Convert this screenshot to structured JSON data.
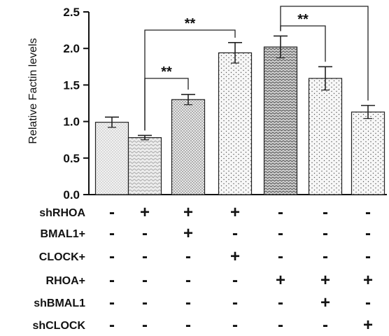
{
  "chart_data": {
    "type": "bar",
    "ylabel": "Relative Factin levels",
    "ylim": [
      0,
      2.5
    ],
    "yticks": [
      "0.0",
      "0.5",
      "1.0",
      "1.5",
      "2.0",
      "2.5"
    ],
    "yticks_values": [
      0,
      0.5,
      1.0,
      1.5,
      2.0,
      2.5
    ],
    "values": [
      0.99,
      0.78,
      1.3,
      1.94,
      2.02,
      1.59,
      1.13
    ],
    "errors": [
      0.07,
      0.03,
      0.07,
      0.14,
      0.15,
      0.16,
      0.09
    ],
    "bar_patterns": [
      "fine-dots",
      "chevrons",
      "dense-dots",
      "sparse-dots",
      "dense-chevrons",
      "sparse-dots",
      "sparse-dots"
    ],
    "grid": false,
    "significance": [
      {
        "from": 1,
        "to": 2,
        "label": "**"
      },
      {
        "from": 1,
        "to": 3,
        "label": "**"
      },
      {
        "from": 4,
        "to": 5,
        "label": "**"
      },
      {
        "from": 4,
        "to": 6,
        "label": "**"
      }
    ],
    "conditions": [
      {
        "label": "shRHOA",
        "signs": [
          "-",
          "+",
          "+",
          "+",
          "-",
          "-",
          "-"
        ]
      },
      {
        "label": "BMAL1+",
        "signs": [
          "-",
          "-",
          "+",
          "-",
          "-",
          "-",
          "-"
        ]
      },
      {
        "label": "CLOCK+",
        "signs": [
          "-",
          "-",
          "-",
          "+",
          "-",
          "-",
          "-"
        ]
      },
      {
        "label": "RHOA+",
        "signs": [
          "-",
          "-",
          "-",
          "-",
          "+",
          "+",
          "+"
        ]
      },
      {
        "label": "shBMAL1",
        "signs": [
          "-",
          "-",
          "-",
          "-",
          "-",
          "+",
          "-"
        ]
      },
      {
        "label": "shCLOCK",
        "signs": [
          "-",
          "-",
          "-",
          "-",
          "-",
          "-",
          "+"
        ]
      }
    ]
  }
}
